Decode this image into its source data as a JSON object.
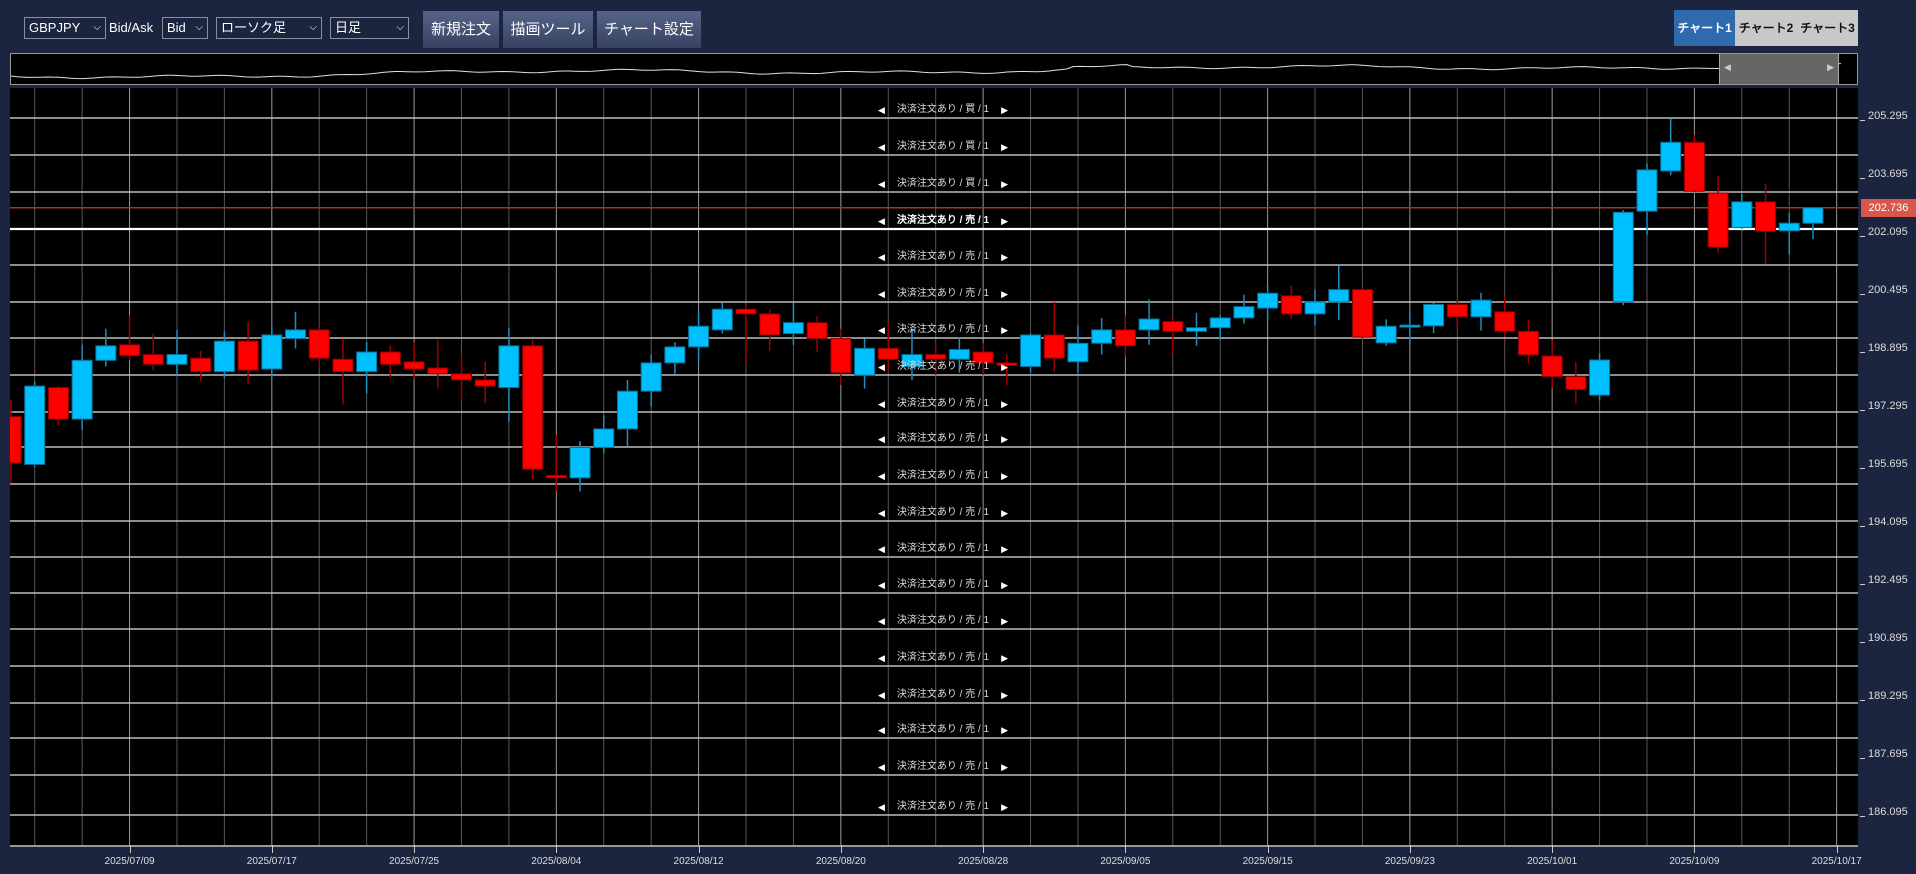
{
  "toolbar": {
    "symbol": "GBPJPY",
    "bidask_label": "Bid/Ask",
    "bidask": "Bid",
    "chart_type": "ローソク足",
    "timeframe": "日足",
    "new_order": "新規注文",
    "drawing_tools": "描画ツール",
    "chart_settings": "チャート設定"
  },
  "chart_tabs": [
    {
      "label": "チャート1",
      "active": true
    },
    {
      "label": "チャート2",
      "active": false
    },
    {
      "label": "チャート3",
      "active": false
    }
  ],
  "orders": [
    {
      "label": "決済注文あり / 買 / 1"
    },
    {
      "label": "決済注文あり / 買 / 1"
    },
    {
      "label": "決済注文あり / 買 / 1"
    },
    {
      "label": "決済注文あり / 売 / 1",
      "highlighted": true
    },
    {
      "label": "決済注文あり / 売 / 1"
    },
    {
      "label": "決済注文あり / 売 / 1"
    },
    {
      "label": "決済注文あり / 売 / 1"
    },
    {
      "label": "決済注文あり / 売 / 1"
    },
    {
      "label": "決済注文あり / 売 / 1"
    },
    {
      "label": "決済注文あり / 売 / 1"
    },
    {
      "label": "決済注文あり / 売 / 1"
    },
    {
      "label": "決済注文あり / 売 / 1"
    },
    {
      "label": "決済注文あり / 売 / 1"
    },
    {
      "label": "決済注文あり / 売 / 1"
    },
    {
      "label": "決済注文あり / 売 / 1"
    },
    {
      "label": "決済注文あり / 売 / 1"
    },
    {
      "label": "決済注文あり / 売 / 1"
    },
    {
      "label": "決済注文あり / 売 / 1"
    },
    {
      "label": "決済注文あり / 売 / 1"
    },
    {
      "label": "決済注文あり / 売 / 1"
    }
  ],
  "current_price": "202.736",
  "colors": {
    "background": "#1c2540",
    "up": "#00bfff",
    "down": "#ff0000",
    "current_price": "#d9574a",
    "active_tab": "#2f6aad"
  },
  "chart_data": {
    "type": "candlestick",
    "ylim": [
      185.5,
      205.9
    ],
    "y_ticks": [
      "205.295",
      "203.695",
      "202.095",
      "200.495",
      "198.895",
      "197.295",
      "195.695",
      "194.095",
      "192.495",
      "190.895",
      "189.295",
      "187.695",
      "186.095"
    ],
    "x_ticks": [
      "2025/07/09",
      "2025/07/17",
      "2025/07/25",
      "2025/08/04",
      "2025/08/12",
      "2025/08/20",
      "2025/08/28",
      "2025/09/05",
      "2025/09/15",
      "2025/09/23",
      "2025/10/01",
      "2025/10/09",
      "2025/10/17"
    ],
    "grid": true,
    "columns": [
      "date",
      "open",
      "high",
      "low",
      "close"
    ],
    "candles": [
      [
        "2025/07/02",
        196.98,
        197.45,
        195.16,
        195.7
      ],
      [
        "2025/07/03",
        195.66,
        197.95,
        195.6,
        197.82
      ],
      [
        "2025/07/04",
        197.78,
        197.82,
        196.74,
        196.91
      ],
      [
        "2025/07/07",
        196.91,
        198.96,
        196.61,
        198.53
      ],
      [
        "2025/07/08",
        198.53,
        199.4,
        198.36,
        198.93
      ],
      [
        "2025/07/09",
        198.96,
        199.77,
        198.53,
        198.66
      ],
      [
        "2025/07/10",
        198.69,
        199.27,
        198.26,
        198.42
      ],
      [
        "2025/07/11",
        198.42,
        199.37,
        198.12,
        198.69
      ],
      [
        "2025/07/14",
        198.59,
        198.79,
        197.95,
        198.22
      ],
      [
        "2025/07/15",
        198.22,
        199.33,
        198.05,
        199.06
      ],
      [
        "2025/07/16",
        199.06,
        199.6,
        197.89,
        198.26
      ],
      [
        "2025/07/17",
        198.29,
        199.5,
        198.02,
        199.23
      ],
      [
        "2025/07/18",
        199.13,
        199.87,
        198.86,
        199.37
      ],
      [
        "2025/07/21",
        199.37,
        199.45,
        198.36,
        198.59
      ],
      [
        "2025/07/22",
        198.56,
        199.13,
        197.31,
        198.22
      ],
      [
        "2025/07/23",
        198.22,
        199.03,
        197.62,
        198.76
      ],
      [
        "2025/07/24",
        198.76,
        198.93,
        198.05,
        198.42
      ],
      [
        "2025/07/25",
        198.49,
        199.03,
        198.02,
        198.29
      ],
      [
        "2025/07/28",
        198.32,
        199.1,
        197.75,
        198.16
      ],
      [
        "2025/07/29",
        198.16,
        198.69,
        197.41,
        197.99
      ],
      [
        "2025/07/30",
        197.99,
        198.49,
        197.35,
        197.82
      ],
      [
        "2025/07/31",
        197.78,
        199.43,
        196.84,
        198.93
      ],
      [
        "2025/08/01",
        198.93,
        199.1,
        195.26,
        195.53
      ],
      [
        "2025/08/04",
        195.36,
        196.47,
        194.92,
        195.29
      ],
      [
        "2025/08/05",
        195.29,
        196.3,
        194.92,
        196.13
      ],
      [
        "2025/08/06",
        196.13,
        197.01,
        195.97,
        196.64
      ],
      [
        "2025/08/07",
        196.64,
        197.99,
        196.17,
        197.68
      ],
      [
        "2025/08/08",
        197.68,
        198.69,
        197.25,
        198.46
      ],
      [
        "2025/08/11",
        198.46,
        199.03,
        198.16,
        198.9
      ],
      [
        "2025/08/12",
        198.9,
        199.87,
        198.49,
        199.47
      ],
      [
        "2025/08/13",
        199.37,
        200.11,
        199.27,
        199.94
      ],
      [
        "2025/08/14",
        199.94,
        200.04,
        198.46,
        199.81
      ],
      [
        "2025/08/15",
        199.81,
        199.94,
        198.79,
        199.23
      ],
      [
        "2025/08/18",
        199.27,
        200.11,
        198.96,
        199.57
      ],
      [
        "2025/08/19",
        199.57,
        199.74,
        198.76,
        199.13
      ],
      [
        "2025/08/20",
        199.13,
        199.4,
        197.85,
        198.19
      ],
      [
        "2025/08/21",
        198.12,
        199.13,
        197.75,
        198.86
      ],
      [
        "2025/08/22",
        198.86,
        199.57,
        198.19,
        198.56
      ],
      [
        "2025/08/25",
        198.36,
        199.4,
        197.99,
        198.69
      ],
      [
        "2025/08/26",
        198.69,
        199.03,
        198.12,
        198.56
      ],
      [
        "2025/08/27",
        198.56,
        199.17,
        198.19,
        198.83
      ],
      [
        "2025/08/28",
        198.76,
        199.0,
        198.12,
        198.46
      ],
      [
        "2025/08/29",
        198.46,
        198.69,
        197.85,
        198.39
      ],
      [
        "2025/09/01",
        198.36,
        199.27,
        198.19,
        199.23
      ],
      [
        "2025/09/02",
        199.23,
        200.14,
        198.22,
        198.59
      ],
      [
        "2025/09/03",
        198.49,
        199.5,
        198.19,
        199.0
      ],
      [
        "2025/09/04",
        199.0,
        199.7,
        198.69,
        199.37
      ],
      [
        "2025/09/05",
        199.37,
        199.77,
        198.63,
        198.93
      ],
      [
        "2025/09/08",
        199.37,
        200.21,
        198.96,
        199.67
      ],
      [
        "2025/09/09",
        199.6,
        199.74,
        198.69,
        199.33
      ],
      [
        "2025/09/10",
        199.33,
        199.84,
        198.93,
        199.43
      ],
      [
        "2025/09/11",
        199.43,
        199.77,
        199.1,
        199.7
      ],
      [
        "2025/09/12",
        199.7,
        200.34,
        199.54,
        200.01
      ],
      [
        "2025/09/15",
        199.97,
        200.61,
        199.64,
        200.38
      ],
      [
        "2025/09/16",
        200.31,
        200.58,
        199.67,
        199.81
      ],
      [
        "2025/09/17",
        199.81,
        200.48,
        199.5,
        200.14
      ],
      [
        "2025/09/18",
        200.14,
        201.15,
        199.64,
        200.48
      ],
      [
        "2025/09/19",
        200.48,
        200.51,
        199.13,
        199.17
      ],
      [
        "2025/09/22",
        199.01,
        199.66,
        198.93,
        199.47
      ],
      [
        "2025/09/23",
        199.5,
        199.84,
        199.0,
        199.5
      ],
      [
        "2025/09/24",
        199.48,
        200.12,
        199.28,
        200.07
      ],
      [
        "2025/09/25",
        200.07,
        200.2,
        199.36,
        199.73
      ],
      [
        "2025/09/26",
        199.73,
        200.39,
        199.35,
        200.19
      ],
      [
        "2025/09/29",
        199.87,
        200.28,
        199.18,
        199.33
      ],
      [
        "2025/09/30",
        199.33,
        199.64,
        198.44,
        198.68
      ],
      [
        "2025/10/01",
        198.65,
        199.09,
        197.76,
        198.08
      ],
      [
        "2025/10/02",
        198.08,
        198.48,
        197.34,
        197.73
      ],
      [
        "2025/10/03",
        197.57,
        198.72,
        197.42,
        198.54
      ],
      [
        "2025/10/06",
        200.14,
        202.67,
        200.05,
        202.61
      ],
      [
        "2025/10/07",
        202.64,
        203.96,
        201.98,
        203.78
      ],
      [
        "2025/10/08",
        203.75,
        205.19,
        203.63,
        204.54
      ],
      [
        "2025/10/09",
        204.54,
        204.75,
        203.16,
        203.19
      ],
      [
        "2025/10/10",
        203.14,
        203.62,
        201.5,
        201.65
      ],
      [
        "2025/10/13",
        202.19,
        203.12,
        202.15,
        202.9
      ],
      [
        "2025/10/14",
        202.9,
        203.4,
        201.19,
        202.09
      ],
      [
        "2025/10/15",
        202.1,
        202.59,
        201.45,
        202.31
      ],
      [
        "2025/10/16",
        202.31,
        202.74,
        201.87,
        202.736
      ]
    ]
  }
}
